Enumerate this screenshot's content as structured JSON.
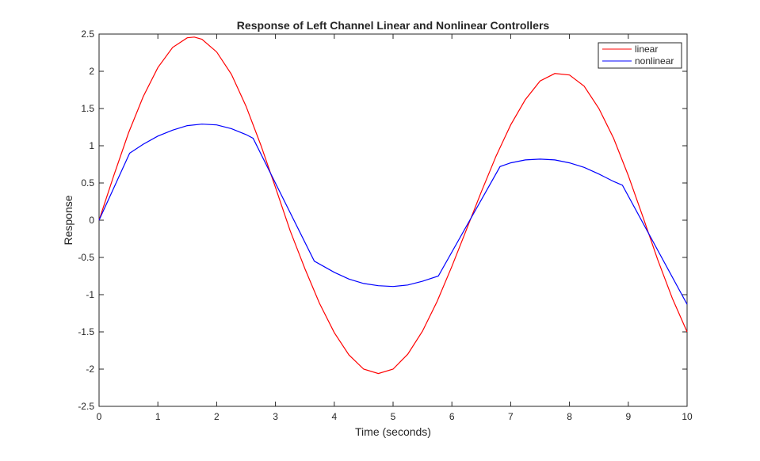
{
  "chart_data": {
    "type": "line",
    "title": "Response of Left Channel Linear and Nonlinear Controllers",
    "xlabel": "Time (seconds)",
    "ylabel": "Response",
    "xlim": [
      0,
      10
    ],
    "ylim": [
      -2.5,
      2.5
    ],
    "xticks": [
      "0",
      "1",
      "2",
      "3",
      "4",
      "5",
      "6",
      "7",
      "8",
      "9",
      "10"
    ],
    "yticks": [
      "-2.5",
      "-2",
      "-1.5",
      "-1",
      "-0.5",
      "0",
      "0.5",
      "1",
      "1.5",
      "2",
      "2.5"
    ],
    "grid": false,
    "legend_position": "top-right",
    "series": [
      {
        "name": "linear",
        "color": "#ff0000",
        "x": [
          0,
          0.25,
          0.5,
          0.75,
          1.0,
          1.25,
          1.5,
          1.62,
          1.75,
          2.0,
          2.25,
          2.5,
          2.75,
          3.0,
          3.25,
          3.5,
          3.75,
          4.0,
          4.25,
          4.5,
          4.75,
          5.0,
          5.25,
          5.5,
          5.75,
          6.0,
          6.25,
          6.5,
          6.75,
          7.0,
          7.25,
          7.5,
          7.75,
          8.0,
          8.25,
          8.5,
          8.75,
          9.0,
          9.25,
          9.5,
          9.75,
          10.0
        ],
        "y": [
          0,
          0.6,
          1.17,
          1.66,
          2.05,
          2.32,
          2.45,
          2.46,
          2.43,
          2.26,
          1.96,
          1.53,
          1.01,
          0.44,
          -0.14,
          -0.65,
          -1.12,
          -1.51,
          -1.81,
          -2.0,
          -2.06,
          -2.0,
          -1.8,
          -1.49,
          -1.09,
          -0.62,
          -0.12,
          0.38,
          0.86,
          1.28,
          1.62,
          1.87,
          1.97,
          1.95,
          1.8,
          1.5,
          1.1,
          0.6,
          0.04,
          -0.53,
          -1.05,
          -1.5
        ]
      },
      {
        "name": "nonlinear",
        "color": "#0000ff",
        "x": [
          0,
          0.52,
          0.75,
          1.0,
          1.25,
          1.5,
          1.75,
          2.0,
          2.25,
          2.5,
          2.62,
          3.66,
          4.0,
          4.25,
          4.5,
          4.75,
          5.0,
          5.25,
          5.5,
          5.77,
          6.82,
          7.0,
          7.25,
          7.5,
          7.75,
          8.0,
          8.25,
          8.5,
          8.75,
          8.9,
          10.0
        ],
        "y": [
          0,
          0.9,
          1.02,
          1.13,
          1.21,
          1.27,
          1.29,
          1.28,
          1.23,
          1.15,
          1.1,
          -0.55,
          -0.7,
          -0.79,
          -0.85,
          -0.88,
          -0.89,
          -0.87,
          -0.82,
          -0.75,
          0.72,
          0.77,
          0.81,
          0.82,
          0.81,
          0.77,
          0.71,
          0.62,
          0.52,
          0.47,
          -1.13
        ]
      }
    ]
  }
}
